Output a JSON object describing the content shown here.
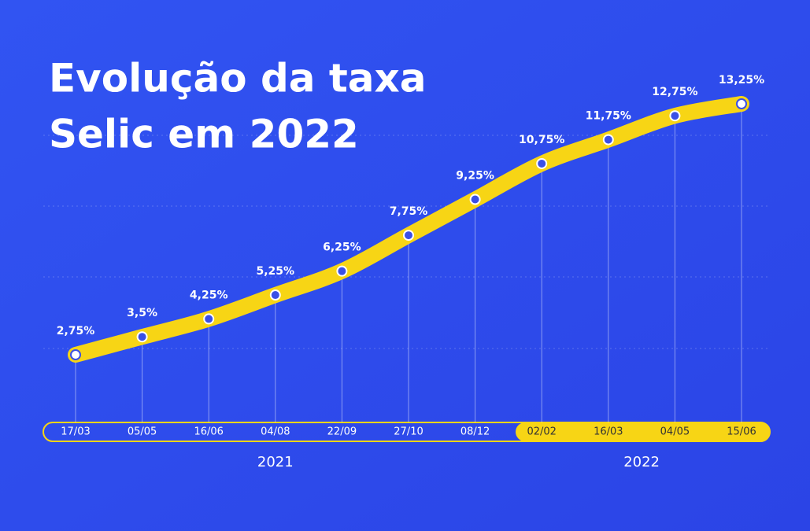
{
  "chart_data": {
    "type": "line",
    "title_lines": [
      "Evolução da taxa",
      "Selic em 2022"
    ],
    "categories": [
      "17/03",
      "05/05",
      "16/06",
      "04/08",
      "22/09",
      "27/10",
      "08/12",
      "02/02",
      "16/03",
      "04/05",
      "15/06"
    ],
    "values": [
      2.75,
      3.5,
      4.25,
      5.25,
      6.25,
      7.75,
      9.25,
      10.75,
      11.75,
      12.75,
      13.25
    ],
    "value_labels": [
      "2,75%",
      "3,5%",
      "4,25%",
      "5,25%",
      "6,25%",
      "7,75%",
      "9,25%",
      "10,75%",
      "11,75%",
      "12,75%",
      "13,25%"
    ],
    "color": "#f7d515",
    "year_labels": [
      "2021",
      "2022"
    ]
  }
}
